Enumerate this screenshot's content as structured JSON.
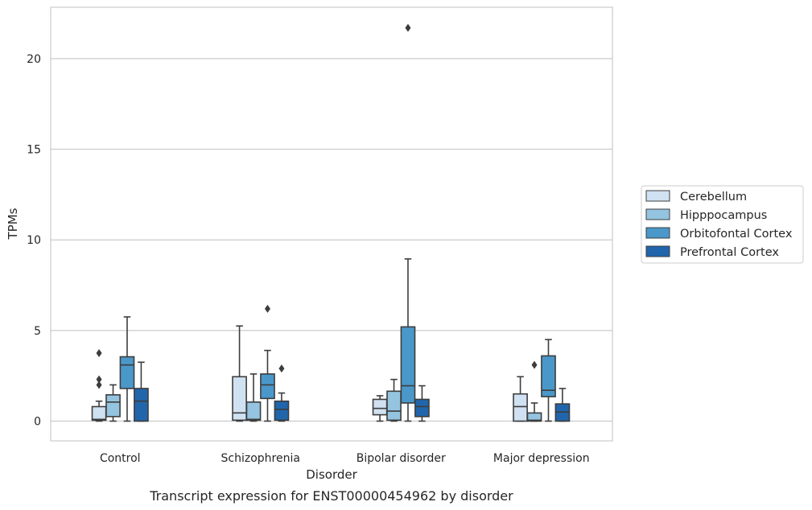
{
  "caption": "Transcript expression for ENST00000454962 by disorder",
  "chart_data": {
    "type": "box",
    "title": "",
    "xlabel": "Disorder",
    "ylabel": "TPMs",
    "ylim": [
      -1.05,
      22.8
    ],
    "yticks": [
      0,
      5,
      10,
      15,
      20
    ],
    "grid": "horizontal",
    "legend_position": "right",
    "categories": [
      "Control",
      "Schizophrenia",
      "Bipolar disorder",
      "Major depression"
    ],
    "series": [
      {
        "name": "Cerebellum",
        "color": "#d0e1f2",
        "boxes": [
          {
            "whislo": 0,
            "q1": 0.05,
            "med": 0.1,
            "q3": 0.8,
            "whishi": 1.1,
            "fliers": [
              2.0,
              2.3,
              3.75
            ]
          },
          {
            "whislo": 0,
            "q1": 0.05,
            "med": 0.45,
            "q3": 2.45,
            "whishi": 5.25,
            "fliers": []
          },
          {
            "whislo": 0,
            "q1": 0.35,
            "med": 0.7,
            "q3": 1.2,
            "whishi": 1.4,
            "fliers": []
          },
          {
            "whislo": 0,
            "q1": 0.0,
            "med": 0.8,
            "q3": 1.5,
            "whishi": 2.45,
            "fliers": []
          }
        ]
      },
      {
        "name": "Hipppocampus",
        "color": "#94c4df",
        "boxes": [
          {
            "whislo": 0,
            "q1": 0.25,
            "med": 1.05,
            "q3": 1.45,
            "whishi": 2.0,
            "fliers": []
          },
          {
            "whislo": 0,
            "q1": 0.05,
            "med": 0.1,
            "q3": 1.05,
            "whishi": 2.6,
            "fliers": []
          },
          {
            "whislo": 0,
            "q1": 0.05,
            "med": 0.55,
            "q3": 1.65,
            "whishi": 2.3,
            "fliers": []
          },
          {
            "whislo": 0,
            "q1": 0.0,
            "med": 0.05,
            "q3": 0.45,
            "whishi": 1.0,
            "fliers": [
              3.1
            ]
          }
        ]
      },
      {
        "name": "Orbitofontal Cortex",
        "color": "#4a98c9",
        "boxes": [
          {
            "whislo": 0,
            "q1": 1.8,
            "med": 3.1,
            "q3": 3.55,
            "whishi": 5.75,
            "fliers": []
          },
          {
            "whislo": 0,
            "q1": 1.25,
            "med": 2.0,
            "q3": 2.6,
            "whishi": 3.9,
            "fliers": [
              6.2
            ]
          },
          {
            "whislo": 0,
            "q1": 1.0,
            "med": 1.95,
            "q3": 5.2,
            "whishi": 8.95,
            "fliers": [
              21.7
            ]
          },
          {
            "whislo": 0,
            "q1": 1.35,
            "med": 1.7,
            "q3": 3.6,
            "whishi": 4.5,
            "fliers": []
          }
        ]
      },
      {
        "name": "Prefrontal Cortex",
        "color": "#2166ac",
        "boxes": [
          {
            "whislo": 0,
            "q1": 0.0,
            "med": 1.1,
            "q3": 1.8,
            "whishi": 3.25,
            "fliers": []
          },
          {
            "whislo": 0,
            "q1": 0.05,
            "med": 0.65,
            "q3": 1.1,
            "whishi": 1.55,
            "fliers": [
              2.9
            ]
          },
          {
            "whislo": 0,
            "q1": 0.25,
            "med": 0.8,
            "q3": 1.2,
            "whishi": 1.95,
            "fliers": []
          },
          {
            "whislo": 0,
            "q1": 0.0,
            "med": 0.5,
            "q3": 0.95,
            "whishi": 1.8,
            "fliers": []
          }
        ]
      }
    ]
  }
}
